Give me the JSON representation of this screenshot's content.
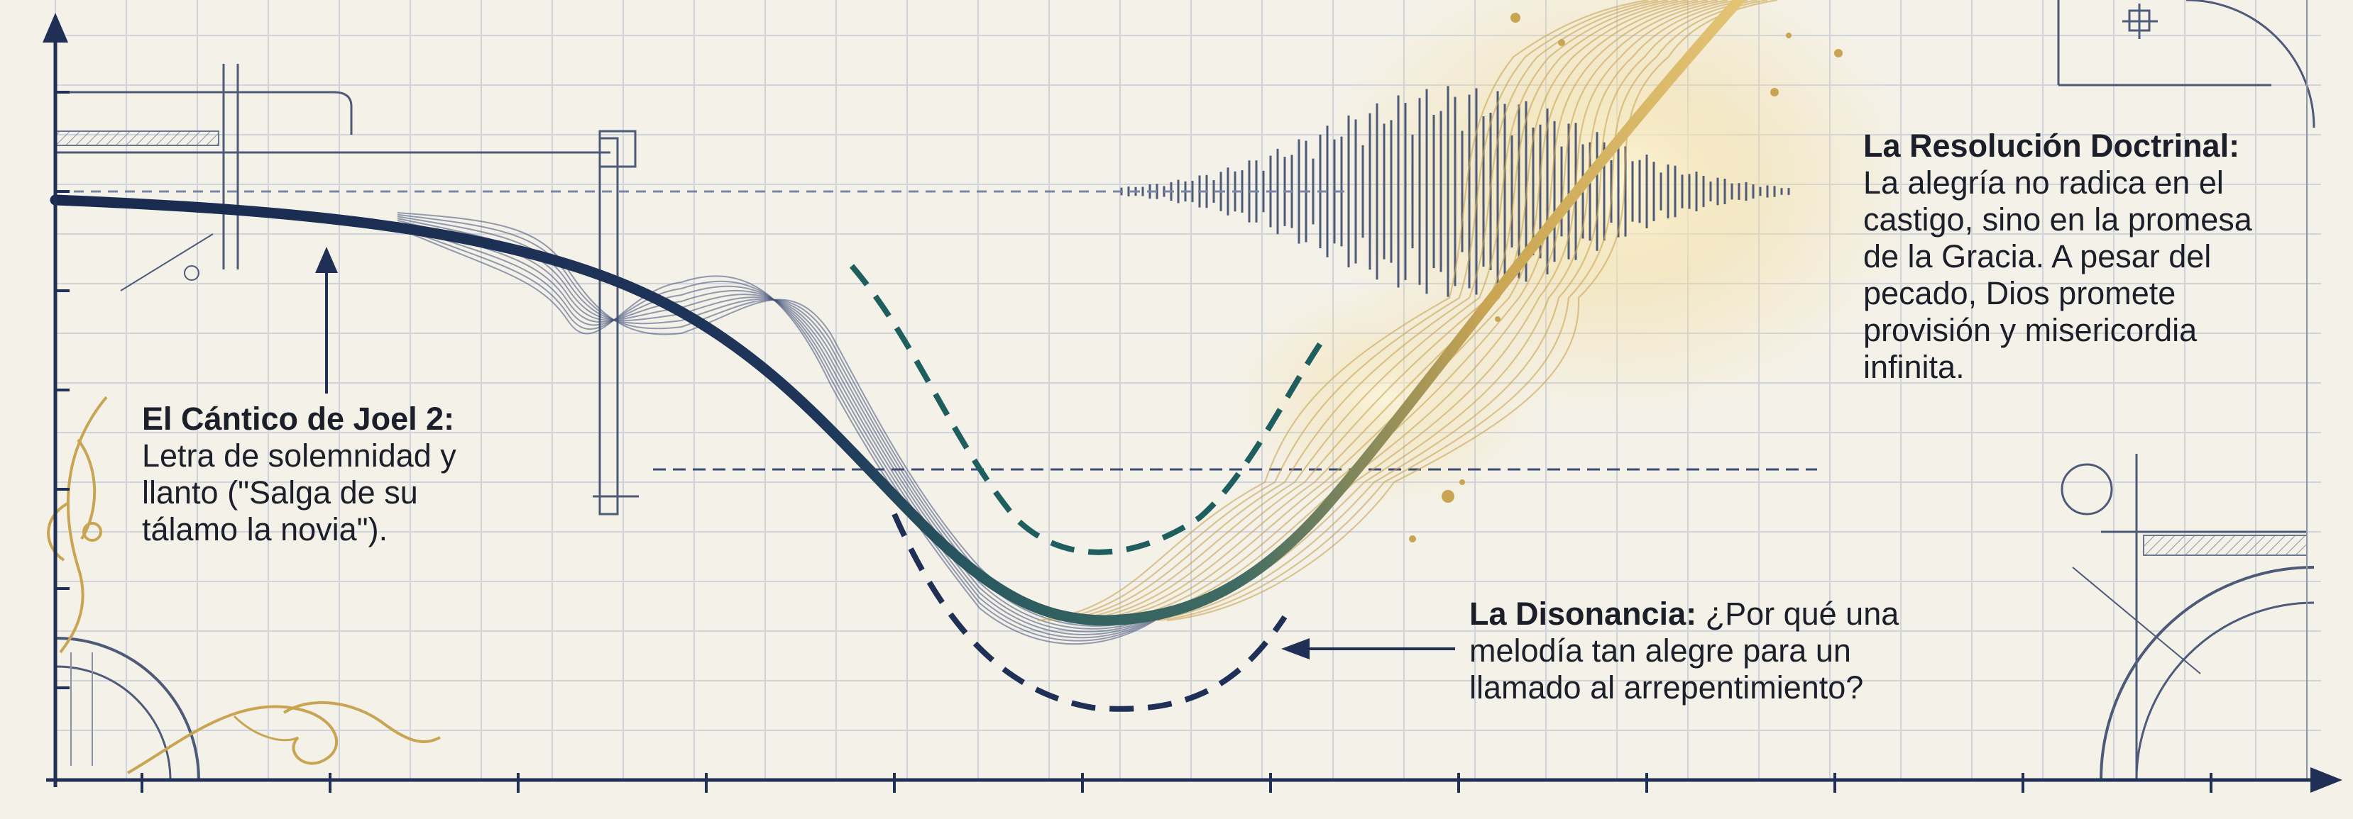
{
  "annotations": {
    "joel": {
      "title": "El Cántico de Joel 2:",
      "lines": [
        "Letra de solemnidad y",
        "llanto (\"Salga de su",
        "tálamo la novia\")."
      ]
    },
    "disonancia": {
      "title": "La Disonancia:",
      "first_rest": " ¿Por qué una",
      "lines": [
        "melodía tan alegre para un",
        "llamado al arrepentimiento?"
      ]
    },
    "resolucion": {
      "title": "La Resolución Doctrinal:",
      "lines": [
        "La alegría no radica en el",
        "castigo, sino en la promesa",
        "de la Gracia. A pesar del",
        "pecado, Dios promete",
        "provisión y misericordia",
        "infinita."
      ]
    }
  },
  "colors": {
    "background": "#f4f1e8",
    "grid": "#c9cfd8",
    "axis": "#1f2f55",
    "main_curve": "#1c2c50",
    "dashed_curve": "#1f5e5e",
    "gold": "#c9a553",
    "text": "#1b1f2a"
  }
}
